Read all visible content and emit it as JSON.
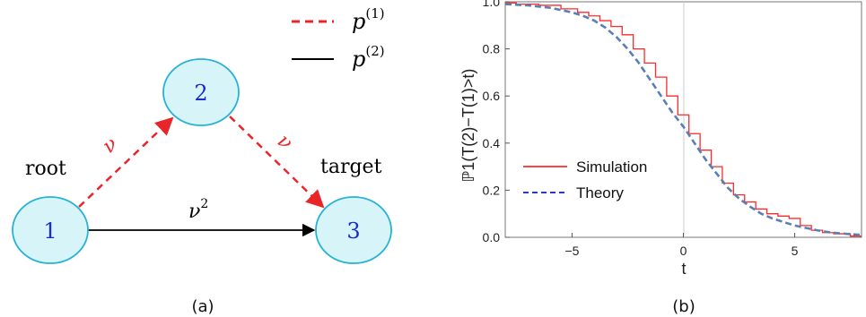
{
  "panel_a": {
    "legend": [
      {
        "symbol": "p",
        "superscript": "(1)",
        "style": "dashed",
        "color": "#e8262a"
      },
      {
        "symbol": "p",
        "superscript": "(2)",
        "style": "solid",
        "color": "#000000"
      }
    ],
    "nodes": [
      {
        "label": "1",
        "note": "root"
      },
      {
        "label": "2"
      },
      {
        "label": "3",
        "note": "target"
      }
    ],
    "edges": [
      {
        "from": "1",
        "to": "2",
        "label": "ν",
        "style": "dashed"
      },
      {
        "from": "2",
        "to": "3",
        "label": "ν",
        "style": "dashed"
      },
      {
        "from": "1",
        "to": "3",
        "label": "ν",
        "label_sup": "2",
        "style": "solid"
      }
    ],
    "node_fill": "#d7f5f8",
    "node_stroke": "#27b2d6",
    "node_text_color": "#1c2bd1",
    "caption": "(a)"
  },
  "chart_data": {
    "type": "line",
    "xlabel": "t",
    "ylabel": "ℙ1(T(2)−T(1)>t)",
    "xlim": [
      -8,
      8
    ],
    "ylim": [
      0,
      1.0
    ],
    "xticks": [
      "−5",
      "0",
      "5"
    ],
    "yticks": [
      "0.0",
      "0.2",
      "0.4",
      "0.6",
      "0.8",
      "1.0"
    ],
    "legend_position": "left",
    "series": [
      {
        "name": "Simulation",
        "color": "#ff2a2a",
        "style": "solid",
        "x": [
          -8,
          -7,
          -6,
          -5,
          -4.5,
          -4,
          -3.5,
          -3,
          -2.5,
          -2,
          -1.5,
          -1,
          -0.5,
          0,
          0.5,
          1,
          1.5,
          2,
          2.5,
          3,
          3.5,
          4,
          4.5,
          5,
          5.5,
          6,
          6.5,
          7,
          8
        ],
        "y": [
          0.995,
          0.99,
          0.985,
          0.97,
          0.955,
          0.94,
          0.92,
          0.895,
          0.86,
          0.8,
          0.74,
          0.68,
          0.6,
          0.52,
          0.44,
          0.37,
          0.3,
          0.23,
          0.18,
          0.15,
          0.12,
          0.1,
          0.09,
          0.08,
          0.05,
          0.03,
          0.02,
          0.015,
          0.005
        ]
      },
      {
        "name": "Theory",
        "color": "#5a7fb5",
        "style": "dashed",
        "x": [
          -8,
          -7,
          -6,
          -5,
          -4.5,
          -4,
          -3.5,
          -3,
          -2.5,
          -2,
          -1.5,
          -1,
          -0.5,
          0,
          0.5,
          1,
          1.5,
          2,
          2.5,
          3,
          3.5,
          4,
          4.5,
          5,
          5.5,
          6,
          6.5,
          7,
          8
        ],
        "y": [
          0.99,
          0.985,
          0.975,
          0.955,
          0.94,
          0.92,
          0.89,
          0.85,
          0.8,
          0.74,
          0.67,
          0.6,
          0.53,
          0.47,
          0.4,
          0.33,
          0.27,
          0.21,
          0.165,
          0.13,
          0.1,
          0.08,
          0.065,
          0.05,
          0.04,
          0.03,
          0.022,
          0.017,
          0.01
        ]
      }
    ],
    "legend": [
      {
        "label": "Simulation",
        "color": "#ff2a2a",
        "style": "solid"
      },
      {
        "label": "Theory",
        "color": "#2b37cf",
        "style": "dashed"
      }
    ],
    "caption": "(b)"
  }
}
